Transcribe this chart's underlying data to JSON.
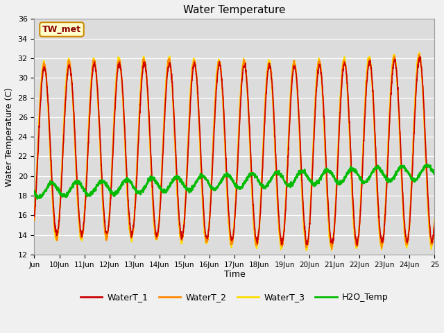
{
  "title": "Water Temperature",
  "xlabel": "Time",
  "ylabel": "Water Temperature (C)",
  "ylim": [
    12,
    36
  ],
  "yticks": [
    12,
    14,
    16,
    18,
    20,
    22,
    24,
    26,
    28,
    30,
    32,
    34,
    36
  ],
  "xlim": [
    0,
    16
  ],
  "xtick_positions": [
    0,
    1,
    2,
    3,
    4,
    5,
    6,
    7,
    8,
    9,
    10,
    11,
    12,
    13,
    14,
    15,
    16
  ],
  "xtick_labels": [
    "Jun",
    "10Jun",
    "11Jun",
    "12Jun",
    "13Jun",
    "14Jun",
    "15Jun",
    "16Jun",
    "17Jun",
    "18Jun",
    "19Jun",
    "20Jun",
    "21Jun",
    "22Jun",
    "23Jun",
    "24Jun",
    "25"
  ],
  "fig_bg_color": "#f0f0f0",
  "plot_bg_color": "#dcdcdc",
  "grid_color": "#ffffff",
  "annotation_text": "TW_met",
  "annotation_bg": "#ffffcc",
  "annotation_border": "#cc8800",
  "annotation_text_color": "#8b0000",
  "series_colors": {
    "WaterT_1": "#cc0000",
    "WaterT_2": "#ff8800",
    "WaterT_3": "#ffdd00",
    "H2O_Temp": "#00bb00"
  },
  "series_linewidths": {
    "WaterT_1": 1.2,
    "WaterT_2": 1.5,
    "WaterT_3": 1.5,
    "H2O_Temp": 1.8
  }
}
